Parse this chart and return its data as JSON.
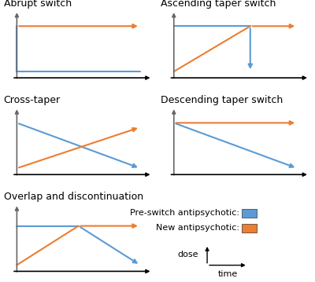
{
  "blue": "#5B9BD5",
  "orange": "#ED7D31",
  "title_fontsize": 9,
  "panels": [
    {
      "title": "Abrupt switch",
      "row": 0,
      "col": 0,
      "lines": [
        {
          "color": "orange",
          "x": [
            0,
            1.0
          ],
          "y": [
            0.82,
            0.82
          ],
          "arrow_end": true,
          "arrow_start": false
        },
        {
          "color": "blue",
          "x": [
            0,
            0
          ],
          "y": [
            0.1,
            0.82
          ],
          "arrow_end": false,
          "arrow_start": false
        },
        {
          "color": "blue",
          "x": [
            0,
            1.0
          ],
          "y": [
            0.1,
            0.1
          ],
          "arrow_end": false,
          "arrow_start": false
        }
      ]
    },
    {
      "title": "Ascending taper switch",
      "row": 0,
      "col": 1,
      "lines": [
        {
          "color": "blue",
          "x": [
            0,
            0.62
          ],
          "y": [
            0.82,
            0.82
          ],
          "arrow_end": false,
          "arrow_start": false
        },
        {
          "color": "blue",
          "x": [
            0.62,
            0.62
          ],
          "y": [
            0.82,
            0.1
          ],
          "arrow_end": true,
          "arrow_start": false
        },
        {
          "color": "orange",
          "x": [
            0,
            0.62
          ],
          "y": [
            0.1,
            0.82
          ],
          "arrow_end": false,
          "arrow_start": false
        },
        {
          "color": "orange",
          "x": [
            0.62,
            1.0
          ],
          "y": [
            0.82,
            0.82
          ],
          "arrow_end": true,
          "arrow_start": false
        }
      ]
    },
    {
      "title": "Cross-taper",
      "row": 1,
      "col": 0,
      "lines": [
        {
          "color": "blue",
          "x": [
            0,
            1.0
          ],
          "y": [
            0.82,
            0.1
          ],
          "arrow_end": true,
          "arrow_start": false
        },
        {
          "color": "orange",
          "x": [
            0,
            1.0
          ],
          "y": [
            0.1,
            0.75
          ],
          "arrow_end": true,
          "arrow_start": false
        }
      ]
    },
    {
      "title": "Descending taper switch",
      "row": 1,
      "col": 1,
      "lines": [
        {
          "color": "orange",
          "x": [
            0,
            1.0
          ],
          "y": [
            0.82,
            0.82
          ],
          "arrow_end": true,
          "arrow_start": false
        },
        {
          "color": "blue",
          "x": [
            0,
            1.0
          ],
          "y": [
            0.82,
            0.1
          ],
          "arrow_end": true,
          "arrow_start": false
        }
      ]
    },
    {
      "title": "Overlap and discontinuation",
      "row": 2,
      "col": 0,
      "lines": [
        {
          "color": "blue",
          "x": [
            0,
            0.5
          ],
          "y": [
            0.72,
            0.72
          ],
          "arrow_end": false,
          "arrow_start": false
        },
        {
          "color": "blue",
          "x": [
            0.5,
            1.0
          ],
          "y": [
            0.72,
            0.1
          ],
          "arrow_end": true,
          "arrow_start": false
        },
        {
          "color": "orange",
          "x": [
            0,
            0.5
          ],
          "y": [
            0.1,
            0.72
          ],
          "arrow_end": false,
          "arrow_start": false
        },
        {
          "color": "orange",
          "x": [
            0.5,
            1.0
          ],
          "y": [
            0.72,
            0.72
          ],
          "arrow_end": true,
          "arrow_start": false
        }
      ]
    }
  ],
  "legend_text1": "Pre-switch antipsychotic:",
  "legend_text2": "New antipsychotic:",
  "dose_label": "dose",
  "time_label": "time"
}
